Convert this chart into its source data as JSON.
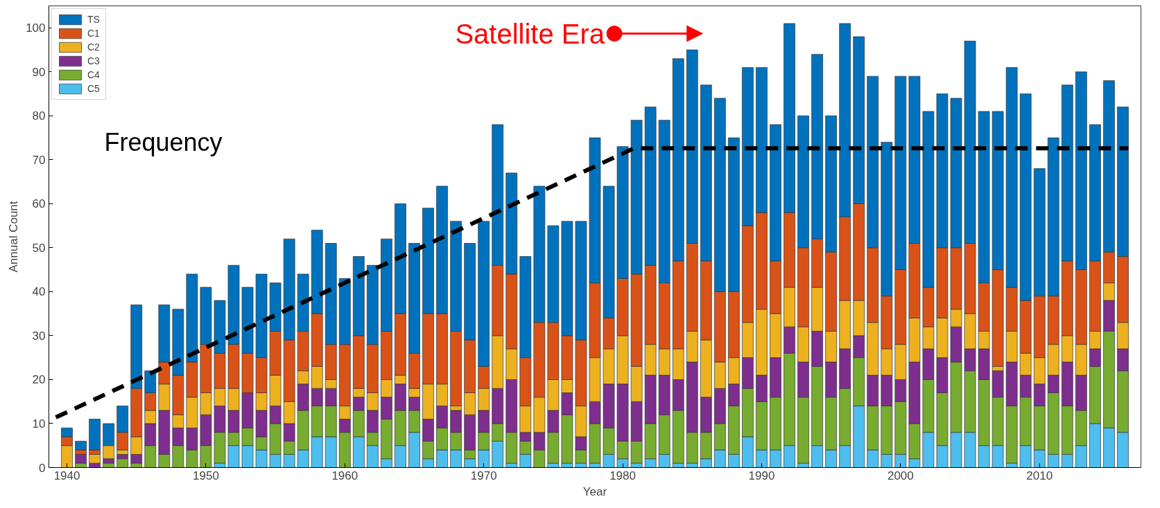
{
  "chart_data": {
    "type": "bar",
    "stacked": true,
    "xlabel": "Year",
    "ylabel": "Annual Count",
    "x": [
      1940,
      1941,
      1942,
      1943,
      1944,
      1945,
      1946,
      1947,
      1948,
      1949,
      1950,
      1951,
      1952,
      1953,
      1954,
      1955,
      1956,
      1957,
      1958,
      1959,
      1960,
      1961,
      1962,
      1963,
      1964,
      1965,
      1966,
      1967,
      1968,
      1969,
      1970,
      1971,
      1972,
      1973,
      1974,
      1975,
      1976,
      1977,
      1978,
      1979,
      1980,
      1981,
      1982,
      1983,
      1984,
      1985,
      1986,
      1987,
      1988,
      1989,
      1990,
      1991,
      1992,
      1993,
      1994,
      1995,
      1996,
      1997,
      1998,
      1999,
      2000,
      2001,
      2002,
      2003,
      2004,
      2005,
      2006,
      2007,
      2008,
      2009,
      2010,
      2011,
      2012,
      2013,
      2014,
      2015,
      2016
    ],
    "xlim": [
      1938.7,
      2017.3
    ],
    "xticks": [
      1940,
      1950,
      1960,
      1970,
      1980,
      1990,
      2000,
      2010
    ],
    "ylim": [
      0,
      105
    ],
    "yticks": [
      0,
      10,
      20,
      30,
      40,
      50,
      60,
      70,
      80,
      90,
      100
    ],
    "legend": "top left",
    "grid": false,
    "series": [
      {
        "name": "C5",
        "color": "#4dbeee",
        "values": [
          0,
          0,
          0,
          0,
          0,
          0,
          0,
          0,
          0,
          0,
          0,
          1,
          5,
          5,
          4,
          3,
          3,
          4,
          7,
          7,
          0,
          7,
          5,
          2,
          5,
          8,
          2,
          4,
          4,
          2,
          4,
          6,
          1,
          3,
          0,
          1,
          1,
          1,
          1,
          3,
          2,
          1,
          2,
          3,
          1,
          1,
          2,
          4,
          3,
          7,
          4,
          4,
          5,
          1,
          5,
          4,
          5,
          14,
          4,
          3,
          3,
          2,
          8,
          5,
          8,
          8,
          5,
          5,
          1,
          5,
          4,
          3,
          3,
          5,
          10,
          9,
          8
        ]
      },
      {
        "name": "C4",
        "color": "#77ac30",
        "values": [
          0,
          1,
          0,
          1,
          2,
          1,
          5,
          3,
          5,
          4,
          5,
          7,
          3,
          4,
          3,
          7,
          3,
          9,
          7,
          7,
          8,
          6,
          3,
          9,
          8,
          5,
          4,
          5,
          4,
          2,
          4,
          4,
          7,
          3,
          4,
          7,
          11,
          3,
          9,
          6,
          4,
          5,
          8,
          9,
          12,
          7,
          6,
          6,
          11,
          11,
          11,
          12,
          21,
          15,
          18,
          12,
          13,
          11,
          10,
          11,
          12,
          8,
          12,
          12,
          16,
          14,
          15,
          11,
          13,
          11,
          10,
          14,
          11,
          8,
          13,
          22,
          14
        ]
      },
      {
        "name": "C3",
        "color": "#7e2f8e",
        "values": [
          0,
          2,
          1,
          1,
          1,
          2,
          5,
          10,
          4,
          5,
          7,
          6,
          5,
          8,
          6,
          4,
          4,
          6,
          4,
          4,
          3,
          3,
          5,
          5,
          6,
          3,
          5,
          5,
          5,
          8,
          5,
          8,
          12,
          2,
          4,
          5,
          5,
          3,
          5,
          10,
          13,
          9,
          11,
          9,
          7,
          16,
          8,
          8,
          5,
          7,
          6,
          9,
          6,
          8,
          8,
          8,
          9,
          5,
          7,
          7,
          5,
          14,
          7,
          8,
          8,
          5,
          7,
          6,
          10,
          5,
          5,
          4,
          10,
          8,
          4,
          7,
          5
        ]
      },
      {
        "name": "C2",
        "color": "#edb120",
        "values": [
          5,
          0,
          2,
          3,
          1,
          4,
          3,
          6,
          3,
          7,
          5,
          4,
          5,
          0,
          4,
          7,
          5,
          3,
          5,
          2,
          3,
          2,
          4,
          4,
          2,
          2,
          8,
          5,
          1,
          5,
          5,
          12,
          7,
          6,
          8,
          7,
          3,
          7,
          10,
          8,
          11,
          8,
          7,
          6,
          7,
          7,
          13,
          6,
          6,
          8,
          15,
          10,
          9,
          8,
          10,
          7,
          11,
          8,
          12,
          6,
          8,
          10,
          5,
          9,
          4,
          8,
          4,
          1,
          7,
          5,
          6,
          7,
          6,
          7,
          4,
          4,
          6
        ]
      },
      {
        "name": "C1",
        "color": "#d95319",
        "values": [
          2,
          1,
          1,
          0,
          4,
          11,
          4,
          5,
          9,
          8,
          11,
          8,
          10,
          9,
          8,
          10,
          14,
          9,
          12,
          8,
          14,
          12,
          11,
          11,
          14,
          8,
          16,
          16,
          17,
          12,
          5,
          16,
          17,
          11,
          17,
          13,
          10,
          15,
          17,
          7,
          13,
          21,
          18,
          15,
          20,
          20,
          18,
          16,
          15,
          22,
          22,
          12,
          17,
          18,
          11,
          18,
          19,
          22,
          17,
          12,
          17,
          17,
          9,
          16,
          14,
          16,
          11,
          22,
          10,
          12,
          14,
          11,
          17,
          17,
          16,
          7,
          15
        ]
      },
      {
        "name": "TS",
        "color": "#0072bd",
        "values": [
          2,
          2,
          7,
          5,
          6,
          19,
          5,
          13,
          15,
          20,
          13,
          12,
          18,
          15,
          19,
          11,
          23,
          13,
          19,
          23,
          15,
          18,
          18,
          21,
          25,
          25,
          24,
          29,
          25,
          22,
          33,
          32,
          23,
          23,
          31,
          22,
          26,
          27,
          33,
          30,
          30,
          35,
          36,
          37,
          46,
          44,
          40,
          44,
          35,
          36,
          33,
          31,
          43,
          30,
          42,
          31,
          44,
          38,
          39,
          35,
          44,
          38,
          40,
          35,
          34,
          46,
          39,
          36,
          50,
          47,
          29,
          36,
          40,
          45,
          31,
          39,
          34
        ]
      },
      {
        "type": "line",
        "color": "#000000",
        "line_style": "dashed",
        "x": [
          1939.2,
          1980.8,
          2016.4
        ],
        "values": [
          11.4,
          72.6,
          72.6
        ]
      }
    ],
    "annotations": [
      "Frequency",
      {
        "text": "Satellite Era",
        "x": 1979.4,
        "y": 98.7
      }
    ]
  }
}
